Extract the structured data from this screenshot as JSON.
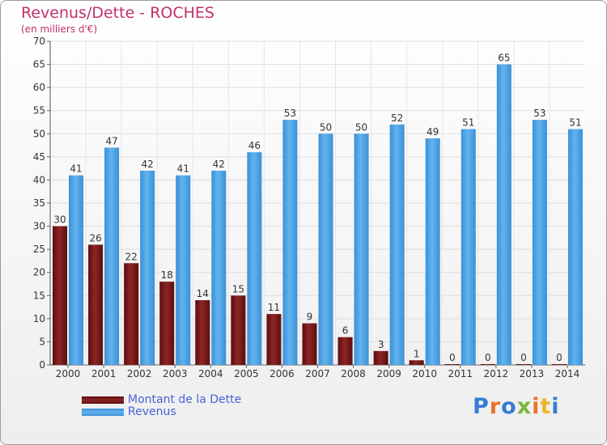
{
  "header": {
    "title": "Revenus/Dette - ROCHES",
    "subtitle": "(en milliers d'€)"
  },
  "legend": {
    "items": [
      {
        "label": "Montant de la Dette",
        "color": "#7a1c1c"
      },
      {
        "label": "Revenus",
        "color": "#4aa3e4"
      }
    ]
  },
  "logo": {
    "text": "Proxiti",
    "colors": [
      "#3a7bd5",
      "#e8742a",
      "#3a7bd5",
      "#79b53a",
      "#e8742a",
      "#e8b52a",
      "#3a7bd5"
    ]
  },
  "chart_data": {
    "type": "bar",
    "title": "Revenus/Dette - ROCHES",
    "subtitle": "(en milliers d'€)",
    "xlabel": "",
    "ylabel": "",
    "categories": [
      "2000",
      "2001",
      "2002",
      "2003",
      "2004",
      "2005",
      "2006",
      "2007",
      "2008",
      "2009",
      "2010",
      "2011",
      "2012",
      "2013",
      "2014"
    ],
    "series": [
      {
        "name": "Montant de la Dette",
        "color": "#7a1c1c",
        "values": [
          30,
          26,
          22,
          18,
          14,
          15,
          11,
          9,
          6,
          3,
          1,
          0,
          0,
          0,
          0
        ]
      },
      {
        "name": "Revenus",
        "color": "#4aa3e4",
        "values": [
          41,
          47,
          42,
          41,
          42,
          46,
          53,
          50,
          50,
          52,
          49,
          51,
          65,
          53,
          51
        ]
      }
    ],
    "ylim": [
      0,
      70
    ],
    "yticks": [
      0,
      5,
      10,
      15,
      20,
      25,
      30,
      35,
      40,
      45,
      50,
      55,
      60,
      65,
      70
    ],
    "grid": true,
    "legend_position": "bottom-left"
  }
}
